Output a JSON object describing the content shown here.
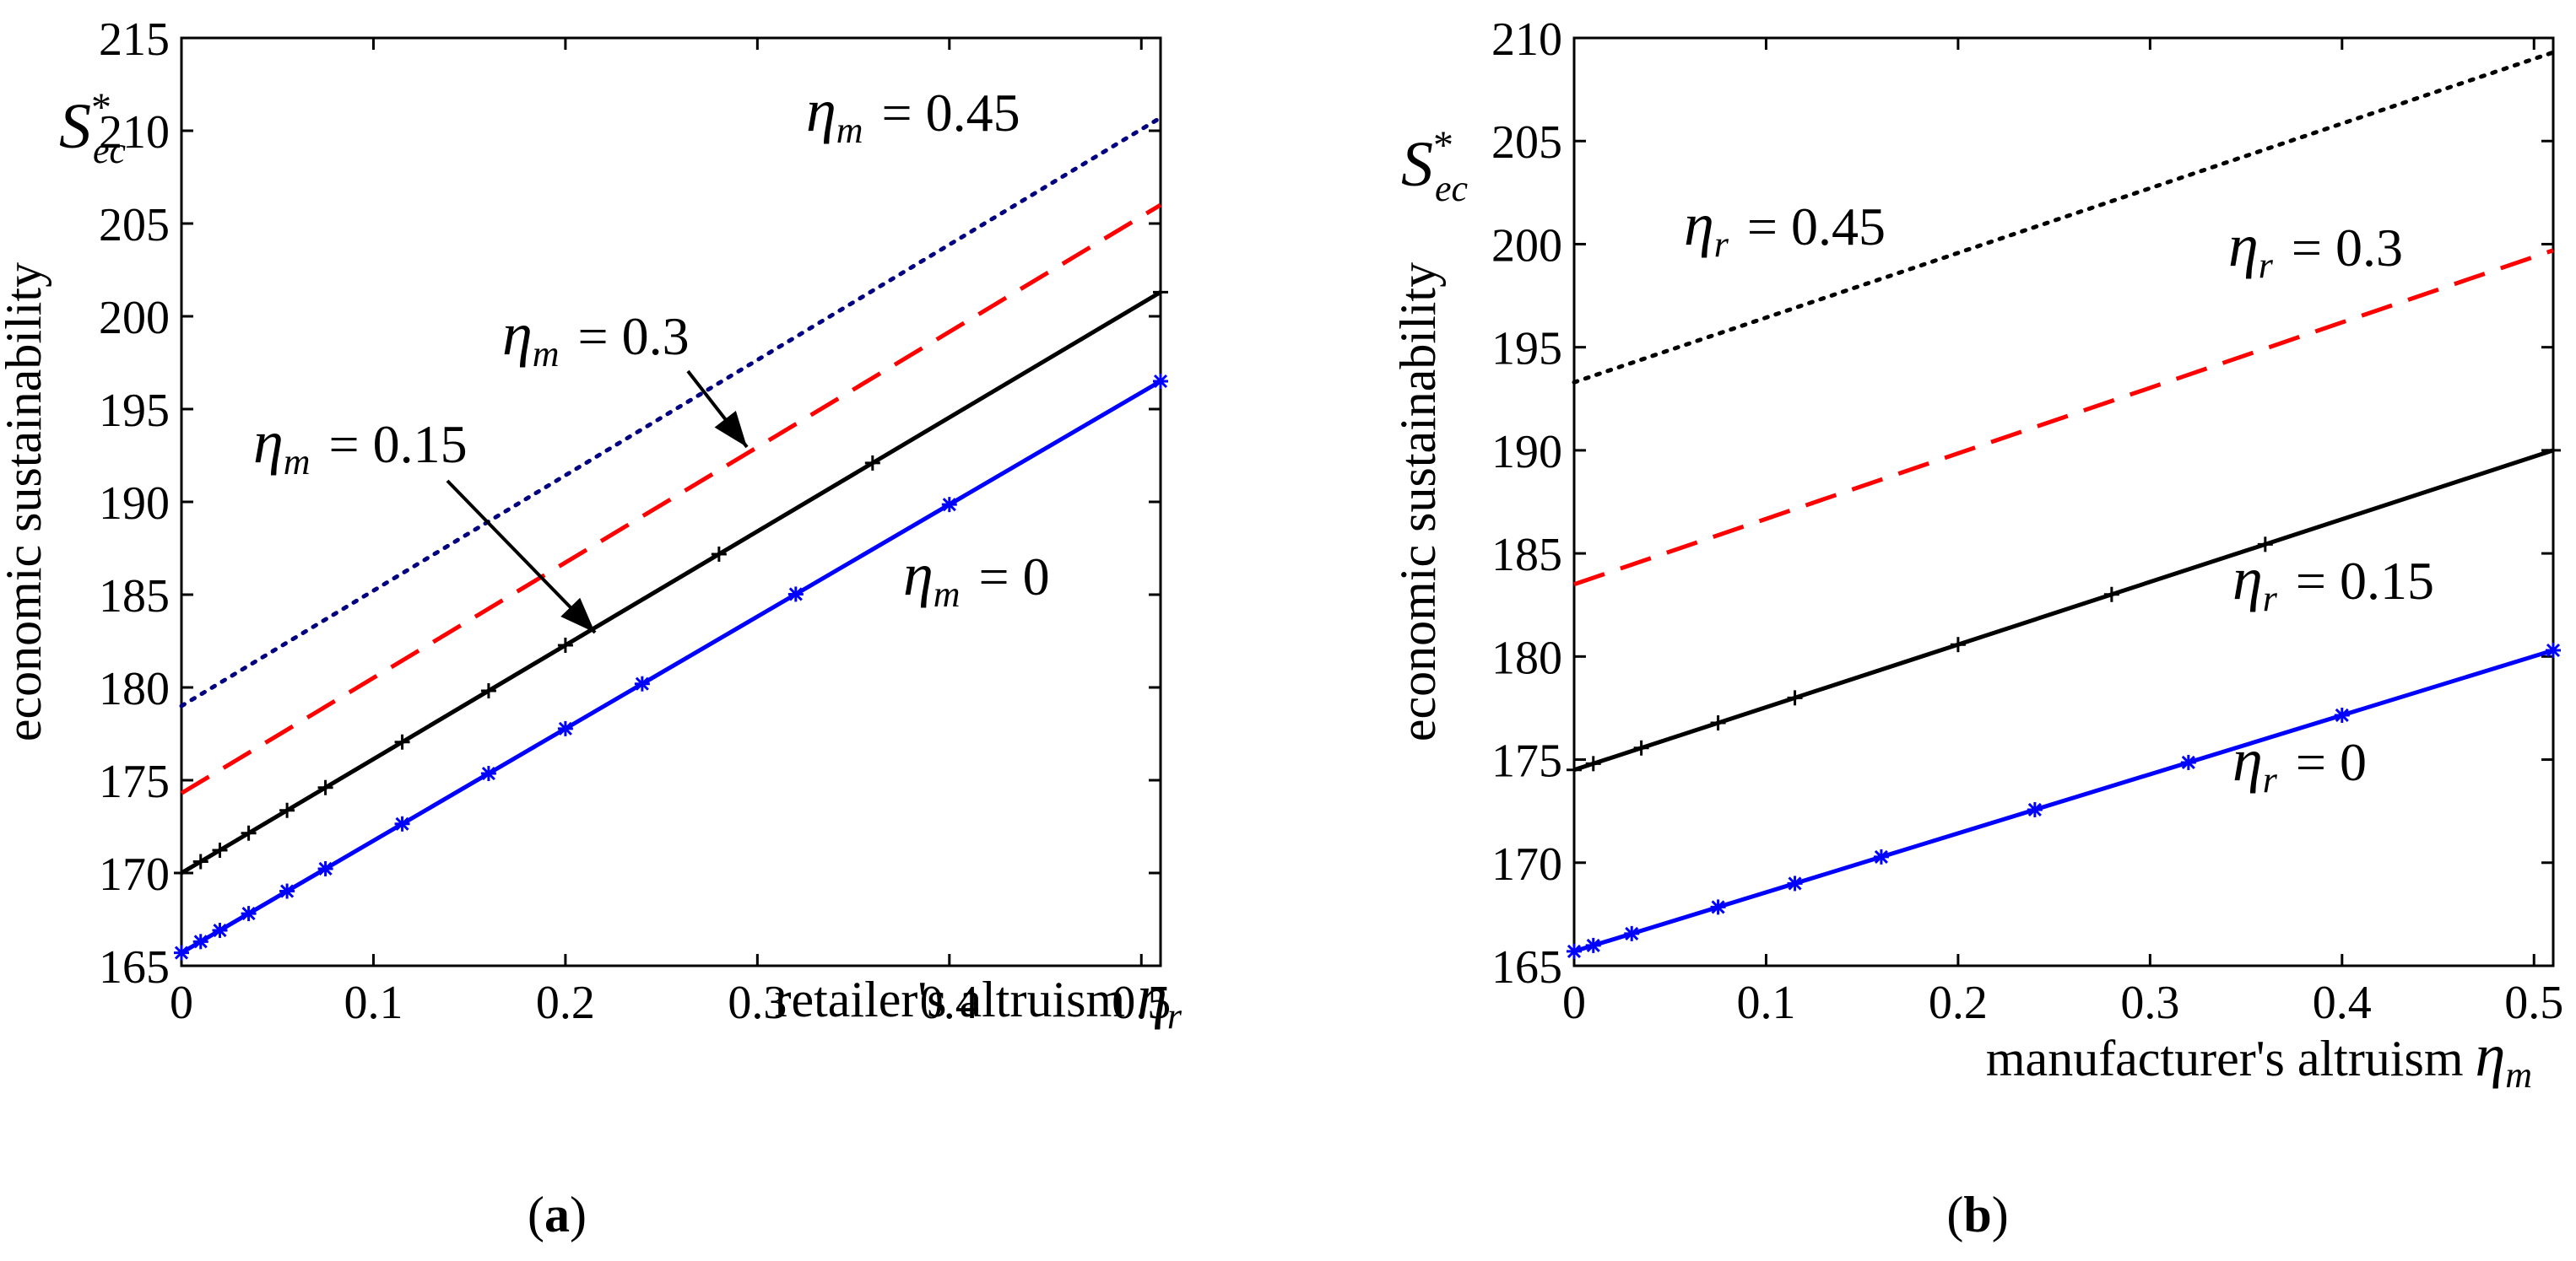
{
  "chart_data": [
    {
      "type": "line",
      "panel": "a",
      "panel_label_open": "(",
      "panel_label_letter": "a",
      "panel_label_close": ")",
      "xlabel": "retailer's  altruism",
      "xlabel_symbol": "η",
      "xlabel_symbol_sub": "r",
      "ylabel": "economic sustainability",
      "ylabel_symbol": "S",
      "ylabel_symbol_sup": "*",
      "ylabel_symbol_sub": "ec",
      "xlim": [
        0,
        0.51
      ],
      "ylim": [
        165,
        215
      ],
      "xticks": [
        0,
        0.1,
        0.2,
        0.3,
        0.4,
        0.5
      ],
      "xtick_labels": [
        "0",
        "0.1",
        "0.2",
        "0.3",
        "0.4",
        "0.5"
      ],
      "yticks": [
        165,
        170,
        175,
        180,
        185,
        190,
        195,
        200,
        205,
        210,
        215
      ],
      "ytick_labels": [
        "165",
        "170",
        "175",
        "180",
        "185",
        "190",
        "195",
        "200",
        "205",
        "210",
        "215"
      ],
      "series": [
        {
          "name": "η_m = 0",
          "style": "solid",
          "color": "#0000ff",
          "marker": "star",
          "x": [
            0,
            0.51
          ],
          "y": [
            165.7,
            196.5
          ],
          "marker_x": [
            0,
            0.01,
            0.02,
            0.035,
            0.055,
            0.075,
            0.115,
            0.16,
            0.2,
            0.24,
            0.32,
            0.4,
            0.51
          ]
        },
        {
          "name": "η_m = 0.15",
          "style": "solid",
          "color": "#000000",
          "marker": "plus",
          "x": [
            0,
            0.51
          ],
          "y": [
            170.0,
            201.3
          ],
          "marker_x": [
            0,
            0.01,
            0.02,
            0.035,
            0.055,
            0.075,
            0.115,
            0.16,
            0.2,
            0.28,
            0.36,
            0.51
          ]
        },
        {
          "name": "η_m = 0.3",
          "style": "dashed",
          "color": "#ff0000",
          "marker": "none",
          "x": [
            0,
            0.51
          ],
          "y": [
            174.3,
            206.0
          ]
        },
        {
          "name": "η_m = 0.45",
          "style": "dotted",
          "color": "#000080",
          "marker": "none",
          "x": [
            0,
            0.51
          ],
          "y": [
            179.0,
            210.7
          ]
        }
      ],
      "annotations": [
        {
          "symbol": "η",
          "sub": "m",
          "text": "= 0.45"
        },
        {
          "symbol": "η",
          "sub": "m",
          "text": "= 0.3"
        },
        {
          "symbol": "η",
          "sub": "m",
          "text": "= 0.15"
        },
        {
          "symbol": "η",
          "sub": "m",
          "text": "= 0"
        }
      ]
    },
    {
      "type": "line",
      "panel": "b",
      "panel_label_open": "(",
      "panel_label_letter": "b",
      "panel_label_close": ")",
      "xlabel": "manufacturer's  altruism",
      "xlabel_symbol": "η",
      "xlabel_symbol_sub": "m",
      "ylabel": "economic sustainability",
      "ylabel_symbol": "S",
      "ylabel_symbol_sup": "*",
      "ylabel_symbol_sub": "ec",
      "xlim": [
        0,
        0.51
      ],
      "ylim": [
        165,
        210
      ],
      "xticks": [
        0,
        0.1,
        0.2,
        0.3,
        0.4,
        0.5
      ],
      "xtick_labels": [
        "0",
        "0.1",
        "0.2",
        "0.3",
        "0.4",
        "0.5"
      ],
      "yticks": [
        165,
        170,
        175,
        180,
        185,
        190,
        195,
        200,
        205,
        210
      ],
      "ytick_labels": [
        "165",
        "170",
        "175",
        "180",
        "185",
        "190",
        "195",
        "200",
        "205",
        "210"
      ],
      "series": [
        {
          "name": "η_r = 0",
          "style": "solid",
          "color": "#0000ff",
          "marker": "star",
          "x": [
            0,
            0.51
          ],
          "y": [
            165.7,
            180.3
          ],
          "marker_x": [
            0,
            0.01,
            0.03,
            0.075,
            0.115,
            0.16,
            0.24,
            0.32,
            0.4,
            0.51
          ]
        },
        {
          "name": "η_r = 0.15",
          "style": "solid",
          "color": "#000000",
          "marker": "plus",
          "x": [
            0,
            0.51
          ],
          "y": [
            174.5,
            190.0
          ],
          "marker_x": [
            0,
            0.01,
            0.035,
            0.075,
            0.115,
            0.2,
            0.28,
            0.36,
            0.51
          ]
        },
        {
          "name": "η_r = 0.3",
          "style": "dashed",
          "color": "#ff0000",
          "marker": "none",
          "x": [
            0,
            0.51
          ],
          "y": [
            183.5,
            199.7
          ]
        },
        {
          "name": "η_r = 0.45",
          "style": "dotted",
          "color": "#000000",
          "marker": "none",
          "x": [
            0,
            0.51
          ],
          "y": [
            193.3,
            209.3
          ]
        }
      ],
      "annotations": [
        {
          "symbol": "η",
          "sub": "r",
          "text": "= 0.45"
        },
        {
          "symbol": "η",
          "sub": "r",
          "text": "= 0.3"
        },
        {
          "symbol": "η",
          "sub": "r",
          "text": "= 0.15"
        },
        {
          "symbol": "η",
          "sub": "r",
          "text": "= 0"
        }
      ]
    }
  ]
}
